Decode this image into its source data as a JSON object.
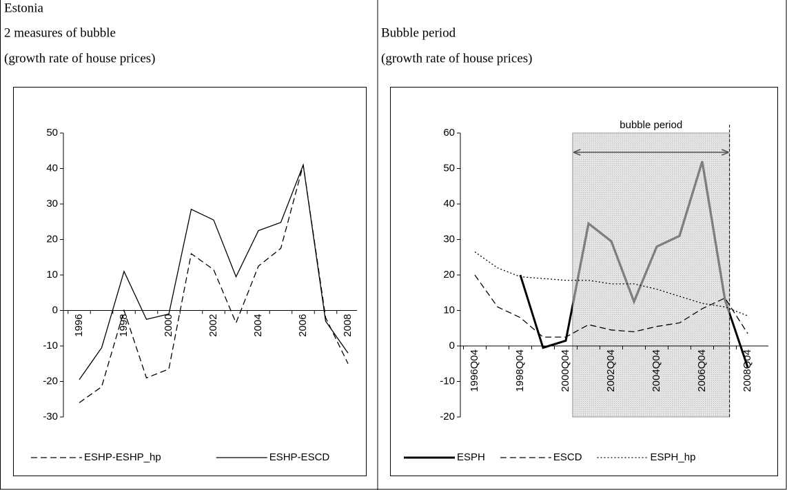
{
  "heading": "Estonia",
  "chart_data": [
    {
      "type": "line",
      "title": "2 measures of bubble",
      "subtitle": "(growth rate of house prices)",
      "categories": [
        "1996",
        null,
        "1998",
        null,
        "2000",
        null,
        "2002",
        null,
        "2004",
        null,
        "2006",
        null,
        "2008"
      ],
      "ylim": [
        -30,
        50
      ],
      "yticks": [
        -30,
        -20,
        -10,
        0,
        10,
        20,
        30,
        40,
        50
      ],
      "series": [
        {
          "name": "ESHP-ESHP_hp",
          "color": "#000000",
          "dash": "dashed",
          "width": 1.3,
          "values": [
            -26,
            -21.5,
            0,
            -19,
            -16.5,
            16,
            11.5,
            -3.5,
            12.5,
            17.5,
            41,
            -2,
            -15
          ]
        },
        {
          "name": "ESHP-ESCD",
          "color": "#000000",
          "dash": "solid",
          "width": 1.3,
          "values": [
            -19.5,
            -10.5,
            11,
            -2.5,
            -1,
            28.5,
            25.5,
            9.5,
            22.5,
            24.8,
            41,
            -3,
            -12
          ]
        }
      ]
    },
    {
      "type": "line",
      "title": "Bubble period",
      "subtitle": "(growth rate of house prices)",
      "categories": [
        "1996Q04",
        null,
        "1998Q04",
        null,
        "2000Q04",
        null,
        "2002Q04",
        null,
        "2004Q04",
        null,
        "2006Q04",
        null,
        "2008Q04"
      ],
      "ylim": [
        -20,
        60
      ],
      "yticks": [
        -20,
        -10,
        0,
        10,
        20,
        30,
        40,
        50,
        60
      ],
      "highlight": {
        "label": "bubble period",
        "from": 4.3,
        "to": 11.2,
        "color": "#d9d9d9",
        "line_color": "#808080"
      },
      "series": [
        {
          "name": "ESPH",
          "color": "#000000",
          "dash": "solid",
          "width": 3,
          "values": [
            null,
            null,
            20,
            -0.5,
            1.5,
            34.5,
            29.5,
            12.5,
            28,
            31,
            52,
            13,
            -6
          ]
        },
        {
          "name": "ESCD",
          "color": "#000000",
          "dash": "dashed",
          "width": 1.3,
          "values": [
            20,
            11,
            8,
            2.5,
            2.5,
            6,
            4.5,
            4,
            5.5,
            6.5,
            10.5,
            13.5,
            3.5
          ]
        },
        {
          "name": "ESPH_hp",
          "color": "#000000",
          "dash": "dotted",
          "width": 1.3,
          "values": [
            26.5,
            22,
            19.5,
            19,
            18.5,
            18.5,
            17.5,
            17.5,
            16,
            14,
            12,
            11,
            8.5
          ]
        }
      ]
    }
  ]
}
